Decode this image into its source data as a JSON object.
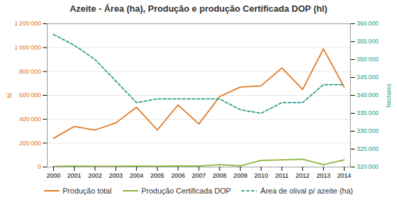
{
  "chart_data": {
    "type": "line",
    "title": "Azeite - Área (ha), Produção e produção Certificada DOP (hl)",
    "x": [
      2000,
      2001,
      2002,
      2003,
      2004,
      2005,
      2006,
      2007,
      2008,
      2009,
      2010,
      2011,
      2012,
      2013,
      2014
    ],
    "xlim": [
      1999.7,
      2014.3
    ],
    "xticks": [
      2000,
      2001,
      2002,
      2003,
      2004,
      2005,
      2006,
      2007,
      2008,
      2009,
      2010,
      2011,
      2012,
      2013,
      2014
    ],
    "ylabel": "hl",
    "ylim": [
      0,
      1200000
    ],
    "yticks": [
      0,
      {
        "value": 200000,
        "label": "200 000"
      },
      {
        "value": 400000,
        "label": "400 000"
      },
      {
        "value": 600000,
        "label": "600 000"
      },
      {
        "value": 800000,
        "label": "800 000"
      },
      {
        "value": 1000000,
        "label": "1 000 000"
      },
      {
        "value": 1200000,
        "label": "1 200 000"
      }
    ],
    "y2label": "hectares",
    "y2lim": [
      320000,
      360000
    ],
    "y2ticks": [
      {
        "value": 320000,
        "label": "320 000"
      },
      {
        "value": 325000,
        "label": "325 000"
      },
      {
        "value": 330000,
        "label": "330 000"
      },
      {
        "value": 335000,
        "label": "335 000"
      },
      {
        "value": 340000,
        "label": "340 000"
      },
      {
        "value": 345000,
        "label": "345 000"
      },
      {
        "value": 350000,
        "label": "350 000"
      },
      {
        "value": 355000,
        "label": "355 000"
      },
      {
        "value": 360000,
        "label": "360 000"
      }
    ],
    "grid": true,
    "legend": "bottom",
    "series": [
      {
        "name": "Produção total",
        "color": "#E07820",
        "line_style": "solid",
        "values": [
          240000,
          340000,
          310000,
          370000,
          500000,
          310000,
          520000,
          360000,
          590000,
          670000,
          680000,
          830000,
          650000,
          990000,
          670000
        ]
      },
      {
        "name": "Produção Certificada DOP",
        "color": "#8CB43A",
        "line_style": "solid",
        "values": [
          5000,
          8000,
          7000,
          6000,
          8000,
          7000,
          9000,
          8000,
          20000,
          10000,
          55000,
          60000,
          65000,
          20000,
          60000
        ]
      },
      {
        "name": "Área de olival p/ azeite (ha)",
        "color": "#2A9D8A",
        "line_style": "dashed",
        "axis": "y2",
        "values": [
          357000,
          354000,
          350000,
          344000,
          338000,
          339000,
          339000,
          339000,
          339000,
          336000,
          335000,
          338000,
          338000,
          343000,
          343000
        ]
      }
    ]
  }
}
